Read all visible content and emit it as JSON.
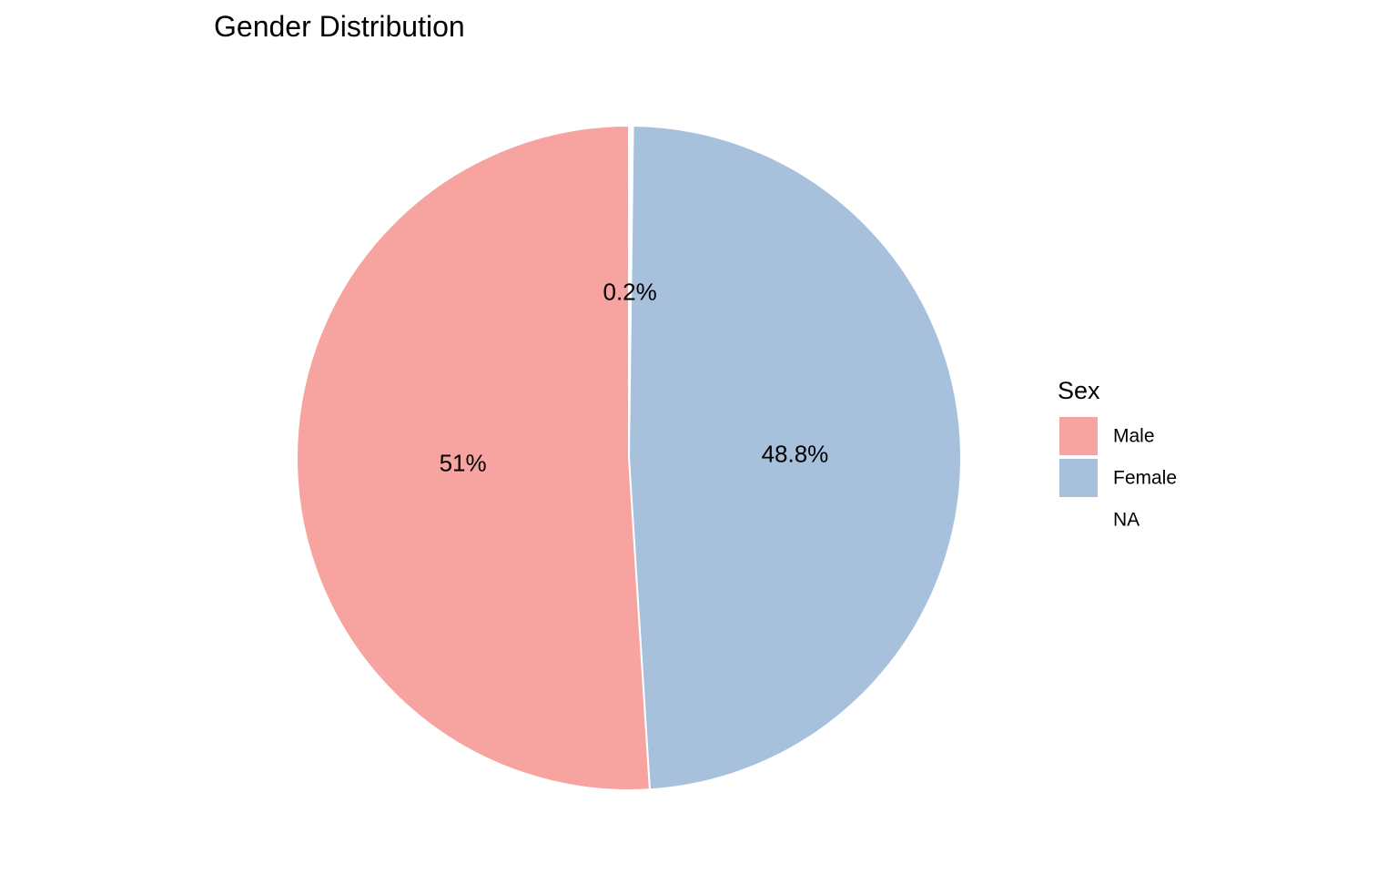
{
  "chart_data": {
    "type": "pie",
    "title": "Gender Distribution",
    "legend_title": "Sex",
    "legend_position": "right",
    "start_angle_deg": 0,
    "direction": "clockwise",
    "slices": [
      {
        "name": "NA",
        "value": 0.2,
        "label": "0.2%",
        "color": "#ffffff"
      },
      {
        "name": "Female",
        "value": 48.8,
        "label": "48.8%",
        "color": "#a7c1dc"
      },
      {
        "name": "Male",
        "value": 51.0,
        "label": "51%",
        "color": "#f7a39f"
      }
    ],
    "legend_order": [
      "Male",
      "Female",
      "NA"
    ]
  }
}
